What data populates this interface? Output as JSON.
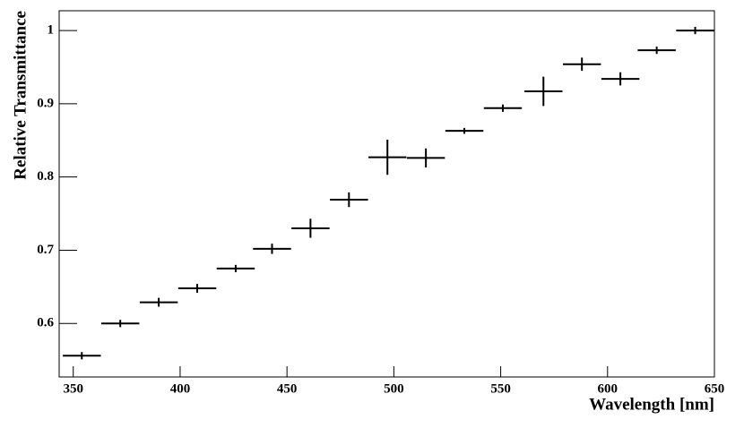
{
  "chart_data": {
    "type": "errorbar",
    "x_label": "Wavelength [nm]",
    "y_label": "Relative Transmittance",
    "x": [
      354,
      372,
      390,
      408,
      426,
      443,
      461,
      479,
      497,
      515,
      533,
      551,
      570,
      588,
      606,
      623,
      641
    ],
    "xerr": [
      8.9,
      8.9,
      8.9,
      8.9,
      8.9,
      8.9,
      8.9,
      8.9,
      8.9,
      8.9,
      8.9,
      8.9,
      8.9,
      8.9,
      8.9,
      8.9,
      8.9
    ],
    "values": [
      0.556,
      0.6,
      0.629,
      0.648,
      0.675,
      0.702,
      0.73,
      0.769,
      0.827,
      0.826,
      0.863,
      0.894,
      0.917,
      0.954,
      0.934,
      0.973,
      1.0
    ],
    "yerr": [
      0.005,
      0.005,
      0.006,
      0.006,
      0.005,
      0.007,
      0.013,
      0.01,
      0.024,
      0.013,
      0.004,
      0.005,
      0.02,
      0.009,
      0.009,
      0.005,
      0.005
    ],
    "color": "#000000",
    "xlim": [
      343.4,
      650
    ],
    "xticks": [
      350,
      400,
      450,
      500,
      550,
      600,
      650
    ],
    "ylim": [
      0.527,
      1.027
    ],
    "yticks": [
      0.6,
      0.7,
      0.8,
      0.9,
      1
    ]
  }
}
